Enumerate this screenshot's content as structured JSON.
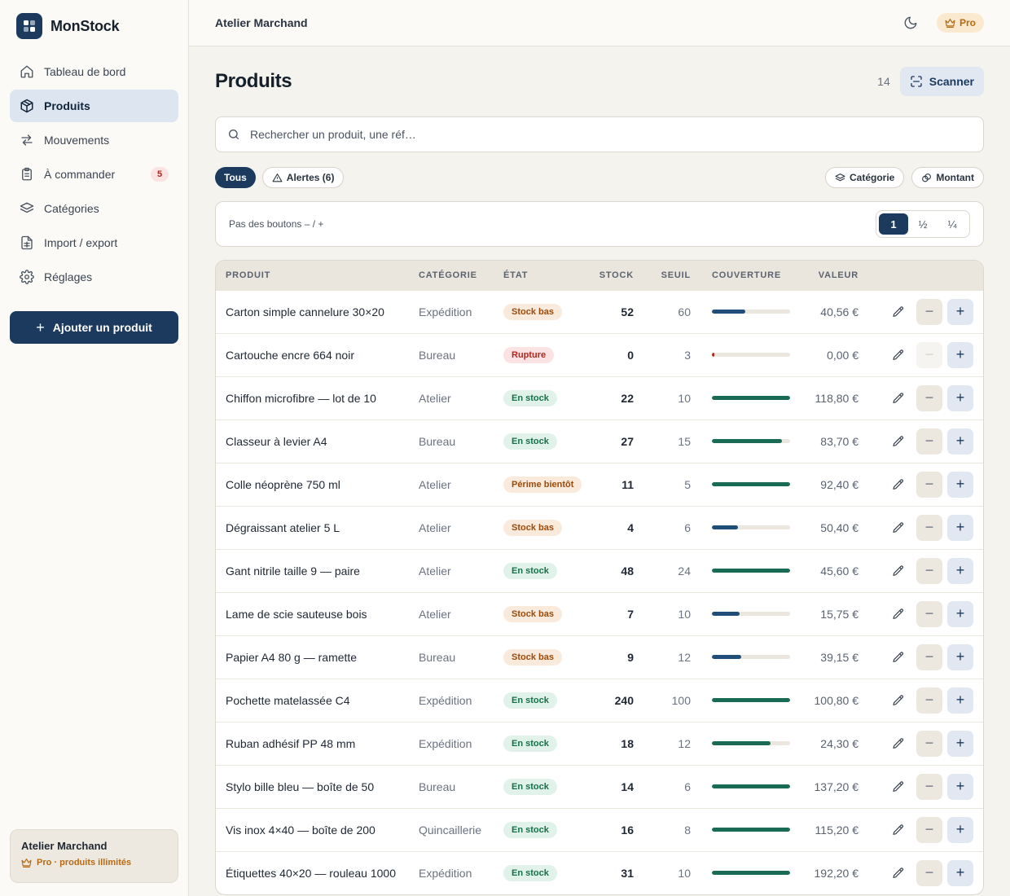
{
  "app": {
    "name": "MonStock"
  },
  "sidebar": {
    "items": [
      {
        "label": "Tableau de bord",
        "icon": "home-icon"
      },
      {
        "label": "Produits",
        "icon": "box-icon",
        "active": true
      },
      {
        "label": "Mouvements",
        "icon": "arrows-swap-icon"
      },
      {
        "label": "À commander",
        "icon": "clipboard-icon",
        "badge": "5"
      },
      {
        "label": "Catégories",
        "icon": "layers-icon"
      },
      {
        "label": "Import / export",
        "icon": "file-spreadsheet-icon"
      },
      {
        "label": "Réglages",
        "icon": "gear-icon"
      }
    ],
    "add_button": "Ajouter un produit",
    "org": {
      "name": "Atelier Marchand",
      "plan": "Pro · produits illimités"
    }
  },
  "topbar": {
    "title": "Atelier Marchand",
    "pro_label": "Pro"
  },
  "page": {
    "title": "Produits",
    "count": "14",
    "scan_label": "Scanner"
  },
  "search": {
    "placeholder": "Rechercher un produit, une réf…",
    "value": ""
  },
  "filters": {
    "all": "Tous",
    "alerts": "Alertes (6)",
    "category": "Catégorie",
    "amount": "Montant"
  },
  "step": {
    "label": "Pas des boutons – / +",
    "options": [
      "1",
      "½",
      "¼"
    ],
    "selected": "1"
  },
  "table": {
    "headers": {
      "product": "PRODUIT",
      "category": "CATÉGORIE",
      "state": "ÉTAT",
      "stock": "STOCK",
      "threshold": "SEUIL",
      "coverage": "COUVERTURE",
      "value": "VALEUR"
    },
    "rows": [
      {
        "name": "Carton simple cannelure 30×20",
        "category": "Expédition",
        "state": "Stock bas",
        "state_kind": "low",
        "stock": "52",
        "threshold": "60",
        "coverage": 0.43,
        "value": "40,56 €"
      },
      {
        "name": "Cartouche encre 664 noir",
        "category": "Bureau",
        "state": "Rupture",
        "state_kind": "out",
        "stock": "0",
        "threshold": "3",
        "coverage": 0.02,
        "value": "0,00 €",
        "minus_disabled": true
      },
      {
        "name": "Chiffon microfibre — lot de 10",
        "category": "Atelier",
        "state": "En stock",
        "state_kind": "ok",
        "stock": "22",
        "threshold": "10",
        "coverage": 1,
        "value": "118,80 €"
      },
      {
        "name": "Classeur à levier A4",
        "category": "Bureau",
        "state": "En stock",
        "state_kind": "ok",
        "stock": "27",
        "threshold": "15",
        "coverage": 0.9,
        "value": "83,70 €"
      },
      {
        "name": "Colle néoprène 750 ml",
        "category": "Atelier",
        "state": "Périme bientôt",
        "state_kind": "exp",
        "stock": "11",
        "threshold": "5",
        "coverage": 1,
        "value": "92,40 €"
      },
      {
        "name": "Dégraissant atelier 5 L",
        "category": "Atelier",
        "state": "Stock bas",
        "state_kind": "low",
        "stock": "4",
        "threshold": "6",
        "coverage": 0.33,
        "value": "50,40 €"
      },
      {
        "name": "Gant nitrile taille 9 — paire",
        "category": "Atelier",
        "state": "En stock",
        "state_kind": "ok",
        "stock": "48",
        "threshold": "24",
        "coverage": 1,
        "value": "45,60 €"
      },
      {
        "name": "Lame de scie sauteuse bois",
        "category": "Atelier",
        "state": "Stock bas",
        "state_kind": "low",
        "stock": "7",
        "threshold": "10",
        "coverage": 0.35,
        "value": "15,75 €"
      },
      {
        "name": "Papier A4 80 g — ramette",
        "category": "Bureau",
        "state": "Stock bas",
        "state_kind": "low",
        "stock": "9",
        "threshold": "12",
        "coverage": 0.375,
        "value": "39,15 €"
      },
      {
        "name": "Pochette matelassée C4",
        "category": "Expédition",
        "state": "En stock",
        "state_kind": "ok",
        "stock": "240",
        "threshold": "100",
        "coverage": 1,
        "value": "100,80 €"
      },
      {
        "name": "Ruban adhésif PP 48 mm",
        "category": "Expédition",
        "state": "En stock",
        "state_kind": "ok",
        "stock": "18",
        "threshold": "12",
        "coverage": 0.75,
        "value": "24,30 €"
      },
      {
        "name": "Stylo bille bleu — boîte de 50",
        "category": "Bureau",
        "state": "En stock",
        "state_kind": "ok",
        "stock": "14",
        "threshold": "6",
        "coverage": 1,
        "value": "137,20 €"
      },
      {
        "name": "Vis inox 4×40 — boîte de 200",
        "category": "Quincaillerie",
        "state": "En stock",
        "state_kind": "ok",
        "stock": "16",
        "threshold": "8",
        "coverage": 1,
        "value": "115,20 €"
      },
      {
        "name": "Étiquettes 40×20 — rouleau 1000",
        "category": "Expédition",
        "state": "En stock",
        "state_kind": "ok",
        "stock": "31",
        "threshold": "10",
        "coverage": 1,
        "value": "192,20 €"
      }
    ]
  },
  "colors": {
    "primary": "#1c3a5e",
    "coverage_ok": "#1a6b55",
    "coverage_low": "#1f4e79",
    "coverage_out": "#b3261e",
    "badge_ok": "#17704a",
    "badge_low": "#9a4b0c",
    "badge_out": "#b3261e",
    "pro": "#b56a12"
  }
}
